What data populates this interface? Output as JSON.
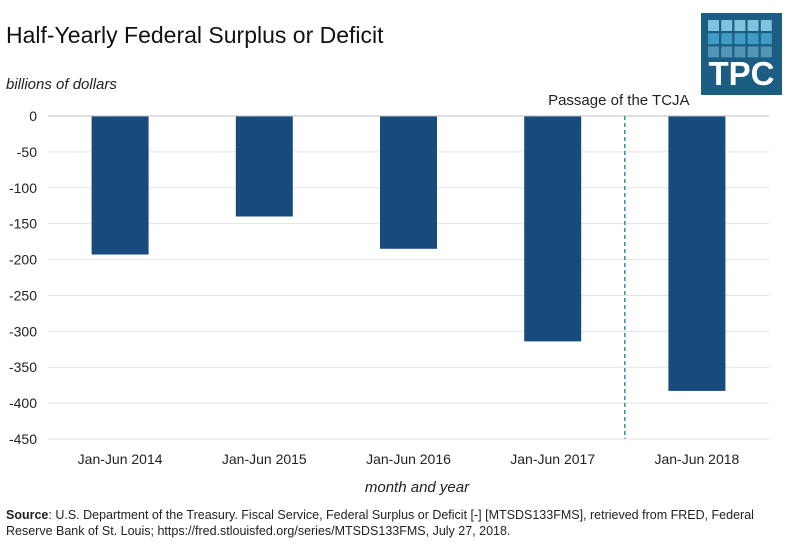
{
  "chart_data": {
    "type": "bar",
    "title": "Half-Yearly Federal Surplus or Deficit",
    "ylabel": "billions of dollars",
    "xlabel": "month and year",
    "categories": [
      "Jan-Jun 2014",
      "Jan-Jun 2015",
      "Jan-Jun 2016",
      "Jan-Jun 2017",
      "Jan-Jun 2018"
    ],
    "values": [
      -193,
      -140,
      -185,
      -314,
      -383
    ],
    "ylim": [
      -450,
      0
    ],
    "yticks": [
      0,
      -50,
      -100,
      -150,
      -200,
      -250,
      -300,
      -350,
      -400,
      -450
    ],
    "ytick_labels": [
      "0",
      "-50",
      "-100",
      "-150",
      "-200",
      "-250",
      "-300",
      "-350",
      "-400",
      "-450"
    ],
    "grid": true,
    "bar_color": "#174b7d",
    "annotation": {
      "text": "Passage of the TCJA",
      "between_categories": [
        "Jan-Jun 2017",
        "Jan-Jun 2018"
      ],
      "line_color": "#2a8fb0",
      "line_style": "dashed"
    }
  },
  "source": {
    "label": "Source",
    "text": ": U.S. Department of the Treasury. Fiscal Service, Federal Surplus or Deficit [-] [MTSDS133FMS], retrieved from FRED, Federal Reserve Bank of St. Louis; https://fred.stlouisfed.org/series/MTSDS133FMS, July 27, 2018."
  },
  "logo": {
    "text": "TPC",
    "background": "#1c5d84",
    "square_light": "#7fc3dc",
    "square_mid": "#3f9cc4"
  }
}
